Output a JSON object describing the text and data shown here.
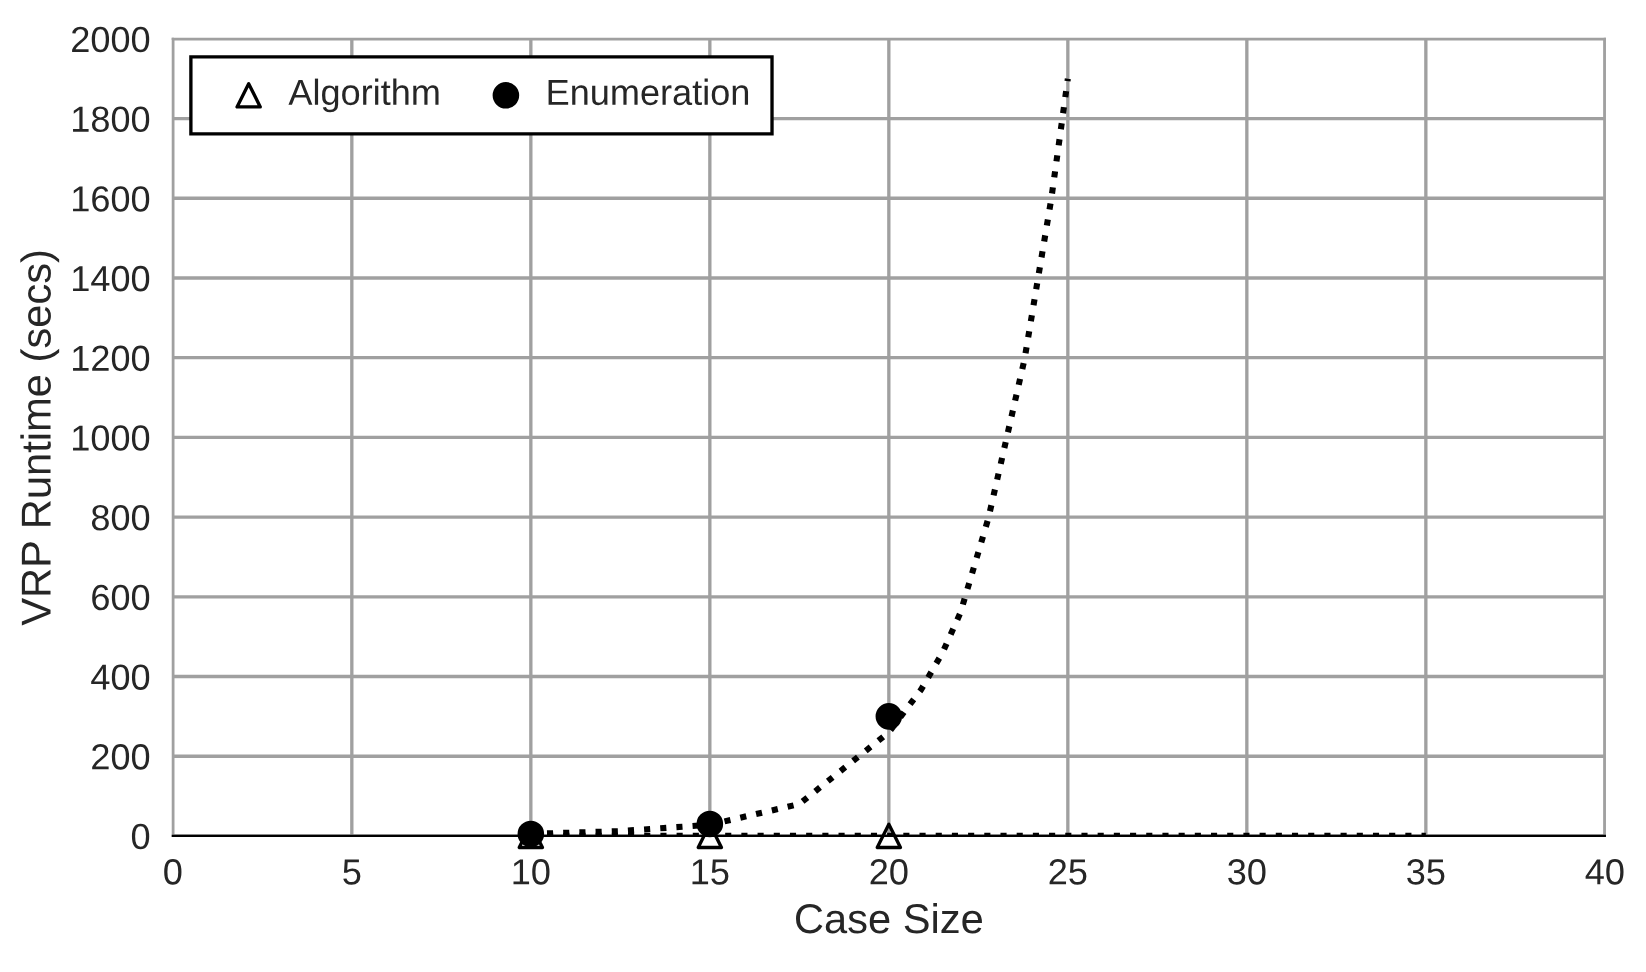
{
  "chart_data": {
    "type": "scatter",
    "xlabel": "Case Size",
    "ylabel": "VRP Runtime (secs)",
    "xlim": [
      0,
      40
    ],
    "xticks": [
      0,
      5,
      10,
      15,
      20,
      25,
      30,
      35,
      40
    ],
    "ylim": [
      0,
      2000
    ],
    "yticks": [
      0,
      200,
      400,
      600,
      800,
      1000,
      1200,
      1400,
      1600,
      1800,
      2000
    ],
    "grid": true,
    "legend": "top left",
    "series": [
      {
        "name": "Algorithm",
        "marker": "triangle",
        "color": "#000000",
        "x": [
          10,
          15,
          20
        ],
        "values": [
          0,
          0,
          0
        ]
      },
      {
        "name": "Enumeration",
        "marker": "circle",
        "color": "#000000",
        "x": [
          10,
          15,
          20
        ],
        "values": [
          5,
          30,
          300
        ]
      },
      {
        "type": "line",
        "line_style": "dotted",
        "marker": "none",
        "color": "#000000",
        "x": [
          10,
          20,
          30,
          35
        ],
        "values": [
          0,
          0,
          0,
          0
        ]
      },
      {
        "type": "line",
        "line_style": "dotted",
        "marker": "none",
        "color": "#000000",
        "x": [
          10,
          12.5,
          15,
          17.5,
          20,
          20.9,
          21.5,
          22,
          22.78,
          23.79,
          24.54,
          25
        ],
        "values": [
          5,
          12,
          28,
          80,
          260,
          367,
          460,
          560,
          797,
          1196,
          1600,
          1900
        ]
      }
    ]
  }
}
